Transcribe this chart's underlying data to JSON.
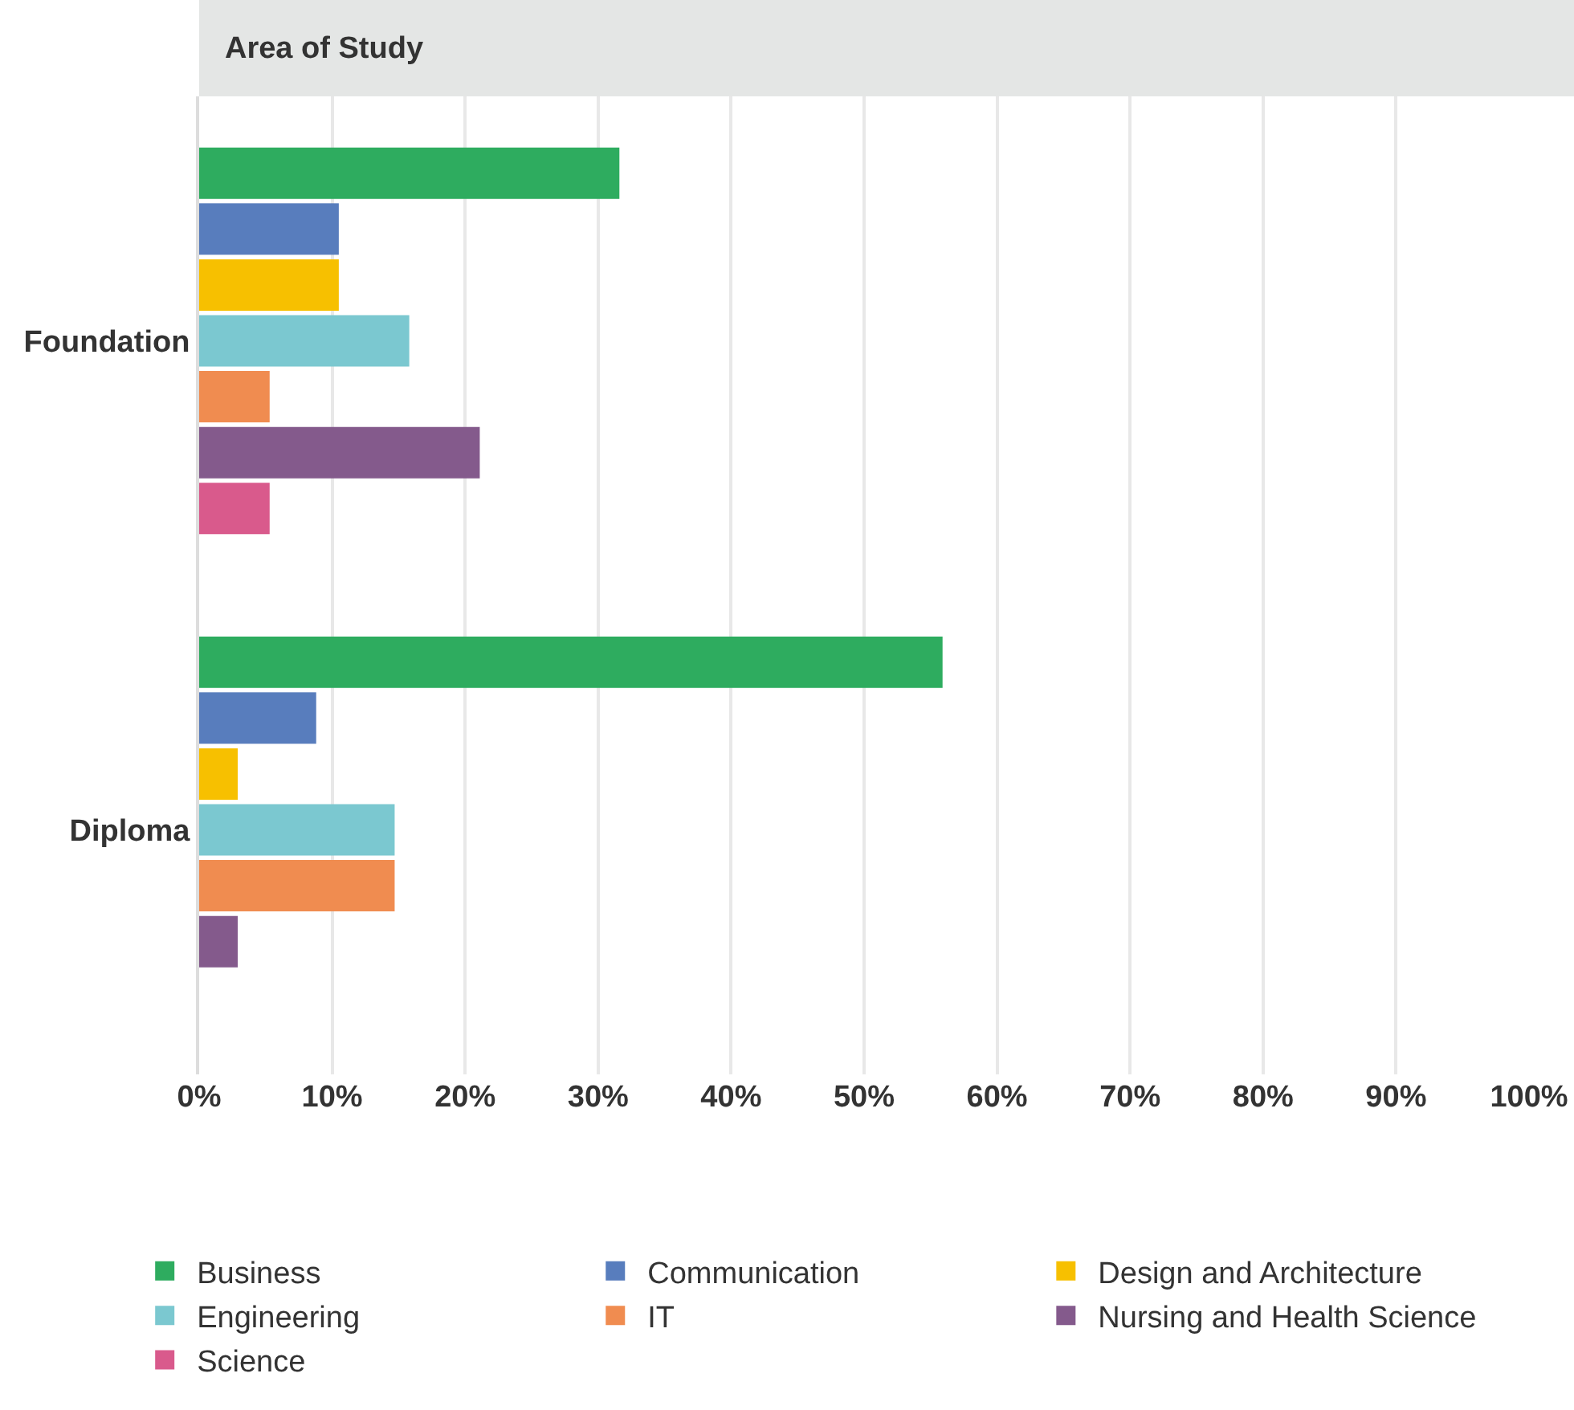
{
  "chart_data": {
    "type": "bar",
    "orientation": "horizontal",
    "title": "Area of Study",
    "categories": [
      "Foundation",
      "Diploma"
    ],
    "series": [
      {
        "name": "Business",
        "color": "#2eac5f",
        "values": [
          31.6,
          55.9
        ]
      },
      {
        "name": "Communication",
        "color": "#587dbd",
        "values": [
          10.5,
          8.8
        ]
      },
      {
        "name": "Design and Architecture",
        "color": "#f7c000",
        "values": [
          10.5,
          2.9
        ]
      },
      {
        "name": "Engineering",
        "color": "#7bc8d0",
        "values": [
          15.8,
          14.7
        ]
      },
      {
        "name": "IT",
        "color": "#f08c50",
        "values": [
          5.3,
          14.7
        ]
      },
      {
        "name": "Nursing and Health Science",
        "color": "#845a8c",
        "values": [
          21.1,
          2.9
        ]
      },
      {
        "name": "Science",
        "color": "#d95a8c",
        "values": [
          5.3,
          0
        ]
      }
    ],
    "xlim": [
      0,
      100
    ],
    "xticks": [
      {
        "value": 0,
        "label": "0%"
      },
      {
        "value": 10,
        "label": "10%"
      },
      {
        "value": 20,
        "label": "20%"
      },
      {
        "value": 30,
        "label": "30%"
      },
      {
        "value": 40,
        "label": "40%"
      },
      {
        "value": 50,
        "label": "50%"
      },
      {
        "value": 60,
        "label": "60%"
      },
      {
        "value": 70,
        "label": "70%"
      },
      {
        "value": 80,
        "label": "80%"
      },
      {
        "value": 90,
        "label": "90%"
      },
      {
        "value": 100,
        "label": "100%"
      }
    ],
    "grid": "x",
    "legend": "bottom"
  }
}
